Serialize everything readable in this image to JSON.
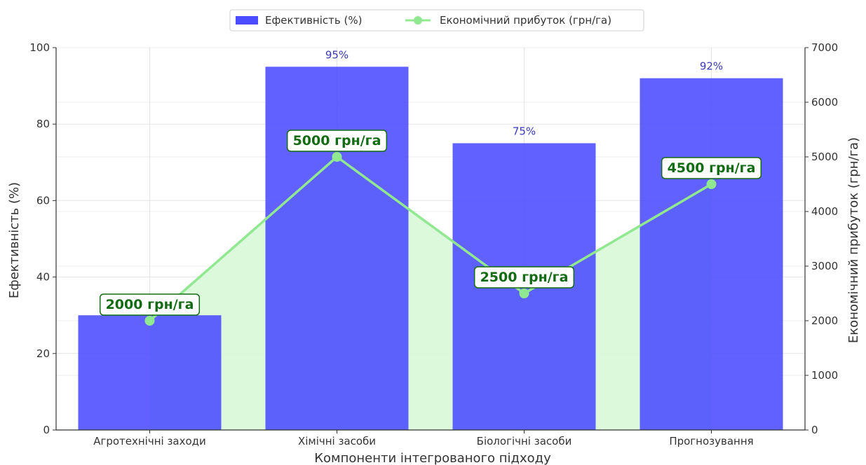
{
  "chart_data": {
    "type": "bar",
    "categories": [
      "Агротехнічні заходи",
      "Хімічні засоби",
      "Біологічні засоби",
      "Прогнозування"
    ],
    "series": [
      {
        "name": "Ефективність (%)",
        "type": "bar",
        "axis": "left",
        "values": [
          30,
          95,
          75,
          92
        ],
        "value_labels": [
          "",
          "95%",
          "75%",
          "92%"
        ],
        "color": "#4b4bff"
      },
      {
        "name": "Економічний прибуток (грн/га)",
        "type": "line",
        "axis": "right",
        "values": [
          2000,
          5000,
          2500,
          4500
        ],
        "value_labels": [
          "2000 грн/га",
          "5000 грн/га",
          "2500 грн/га",
          "4500 грн/га"
        ],
        "color": "#90e890",
        "fill_color": "#d8f8d8",
        "label_color": "#136b13"
      }
    ],
    "xlabel": "Компоненти інтегрованого підходу",
    "ylabel": "Ефективність (%)",
    "y2label": "Економічний прибуток (грн/га)",
    "ylim": [
      0,
      100
    ],
    "y2lim": [
      0,
      7000
    ],
    "yticks": [
      "0",
      "20",
      "40",
      "60",
      "80",
      "100"
    ],
    "y2ticks": [
      "0",
      "1000",
      "2000",
      "3000",
      "4000",
      "5000",
      "6000",
      "7000"
    ],
    "grid": true,
    "legend_position": "top-center"
  }
}
